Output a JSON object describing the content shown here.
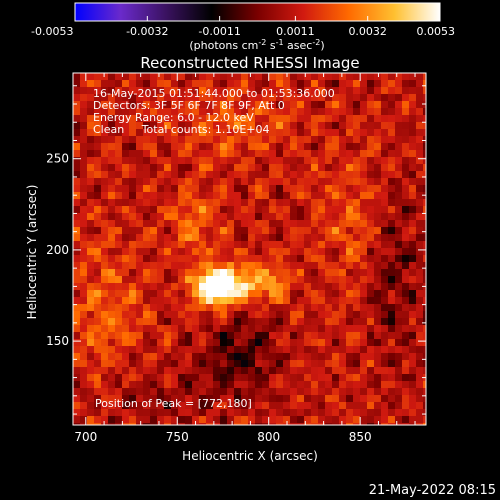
{
  "chart_data": {
    "type": "heatmap",
    "title": "Reconstructed RHESSI Image",
    "xlabel": "Heliocentric X (arcsec)",
    "ylabel": "Heliocentric Y (arcsec)",
    "xlim": [
      693,
      886
    ],
    "ylim": [
      104,
      297
    ],
    "x_ticks": [
      700,
      750,
      800,
      850
    ],
    "y_ticks": [
      150,
      200,
      250
    ],
    "colorbar": {
      "label_prefix": "(photons cm",
      "label_sup1": "-2",
      "label_mid1": " s",
      "label_sup2": "-1",
      "label_mid2": " asec",
      "label_sup3": "-2",
      "label_suffix": ")",
      "min": -0.0053,
      "max": 0.0053,
      "tick_labels": [
        "-0.0053",
        "-0.0032",
        "-0.0011",
        "0.0011",
        "0.0032",
        "0.0053"
      ],
      "colormap": [
        "#0000ff",
        "#6a2acb",
        "#3a1260",
        "#000000",
        "#7a0000",
        "#d11a10",
        "#ff6a00",
        "#ffc030",
        "#ffffff"
      ]
    },
    "annotations": {
      "time": "16-May-2015 01:51:44.000 to 01:53:36.000",
      "detectors": "Detectors: 3F 5F 6F 7F 8F 9F, Att 0",
      "energy": "Energy Range: 6.0 - 12.0 keV",
      "clean": "Clean     Total counts: 1.10E+04",
      "peak": "Position of Peak = [772,180]"
    },
    "peak": {
      "x": 772,
      "y": 180
    },
    "peak_value": 0.0053,
    "blobs": [
      {
        "x": 772,
        "y": 180,
        "amp": 0.0058,
        "sx": 9,
        "sy": 7
      },
      {
        "x": 795,
        "y": 182,
        "amp": 0.0024,
        "sx": 12,
        "sy": 7
      },
      {
        "x": 760,
        "y": 215,
        "amp": 0.0014,
        "sx": 10,
        "sy": 12
      },
      {
        "x": 710,
        "y": 170,
        "amp": 0.0012,
        "sx": 14,
        "sy": 25
      },
      {
        "x": 780,
        "y": 270,
        "amp": 0.0011,
        "sx": 25,
        "sy": 12
      },
      {
        "x": 845,
        "y": 215,
        "amp": 0.001,
        "sx": 14,
        "sy": 22
      },
      {
        "x": 785,
        "y": 140,
        "amp": -0.0018,
        "sx": 14,
        "sy": 16
      },
      {
        "x": 870,
        "y": 190,
        "amp": -0.0013,
        "sx": 10,
        "sy": 30
      },
      {
        "x": 740,
        "y": 120,
        "amp": -0.0008,
        "sx": 20,
        "sy": 10
      }
    ]
  },
  "footer": {
    "timestamp": "21-May-2022 08:15"
  }
}
